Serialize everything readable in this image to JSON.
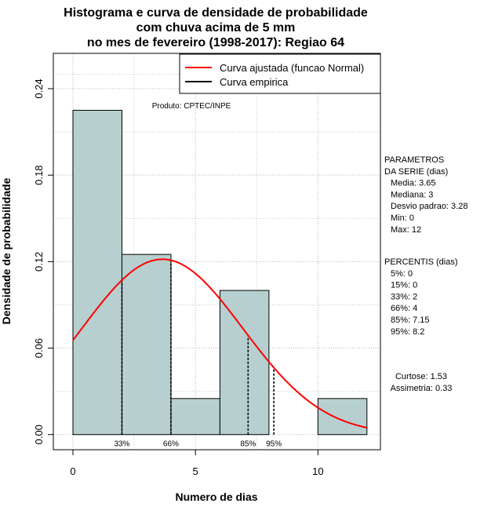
{
  "chart_data": {
    "type": "bar",
    "title_lines": [
      "Histograma e curva de densidade de probabilidade",
      "com chuva acima de 5 mm",
      "no mes de fevereiro (1998-2017): Regiao 64"
    ],
    "xlabel": "Numero de dias",
    "ylabel": "Densidade de probabilidade",
    "xlim": [
      -0.8,
      12.55
    ],
    "ylim": [
      -0.0105,
      0.2645
    ],
    "x_ticks": [
      0,
      5,
      10
    ],
    "y_ticks": [
      0.0,
      0.06,
      0.12,
      0.18,
      0.24
    ],
    "y_tick_labels": [
      "0.00",
      "0.06",
      "0.12",
      "0.18",
      "0.24"
    ],
    "grid": true,
    "bar_color": "#b7cfcf",
    "bins": [
      {
        "x0": 0,
        "x1": 2,
        "density": 0.225
      },
      {
        "x0": 2,
        "x1": 4,
        "density": 0.125
      },
      {
        "x0": 4,
        "x1": 6,
        "density": 0.025
      },
      {
        "x0": 6,
        "x1": 8,
        "density": 0.1
      },
      {
        "x0": 8,
        "x1": 10,
        "density": 0.0
      },
      {
        "x0": 10,
        "x1": 12,
        "density": 0.025
      }
    ],
    "fitted_curve": {
      "name": "Curva ajustada (funcao Normal)",
      "color": "#ff0000",
      "mean": 3.65,
      "sd": 3.28,
      "x_range": [
        0,
        12
      ]
    },
    "percentile_lines": [
      {
        "label": "33%",
        "x": 2
      },
      {
        "label": "66%",
        "x": 4
      },
      {
        "label": "85%",
        "x": 7.15
      },
      {
        "label": "95%",
        "x": 8.2
      }
    ],
    "legend": [
      {
        "label": "Curva ajustada (funcao Normal)",
        "color": "#ff0000"
      },
      {
        "label": "Curva empirica",
        "color": "#000000"
      }
    ],
    "legend_position": "top-right",
    "annotation": "Produto: CPTEC/INPE"
  },
  "side_panel": {
    "parametros": [
      "PARAMETROS",
      "DA SERIE (dias)",
      "Media: 3.65",
      "Mediana: 3",
      "Desvio padrao: 3.28",
      "Min: 0",
      "Max: 12"
    ],
    "percentis": [
      "PERCENTIS (dias)",
      "5%: 0",
      "15%: 0",
      "33%: 2",
      "66%: 4",
      "85%: 7.15",
      "95%: 8.2"
    ],
    "forma": [
      "Curtose: 1.53",
      "Assimetria: 0.33"
    ]
  }
}
